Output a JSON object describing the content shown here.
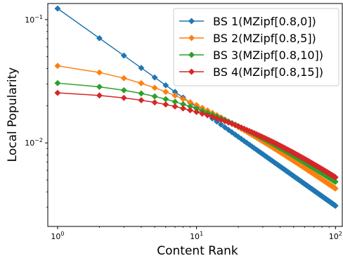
{
  "chart_data": {
    "type": "line",
    "x_scale": "log",
    "y_scale": "log",
    "xlabel": "Content Rank",
    "ylabel": "Local Popularity",
    "xlim": [
      0.85,
      112
    ],
    "ylim": [
      0.0021,
      0.135
    ],
    "x_ticks": [
      {
        "value": 1,
        "base": "10",
        "exp": "0"
      },
      {
        "value": 10,
        "base": "10",
        "exp": "1"
      },
      {
        "value": 100,
        "base": "10",
        "exp": "2"
      }
    ],
    "y_ticks": [
      {
        "value": 0.01,
        "base": "10",
        "exp": "−2"
      },
      {
        "value": 0.1,
        "base": "10",
        "exp": "−1"
      }
    ],
    "legend_position": "top-right",
    "x_range": [
      1,
      100
    ],
    "series": [
      {
        "name": "BS 1(MZipf[0.8,0])",
        "color": "#1f77b4",
        "shift": 0,
        "exponent": 0.8,
        "n_items": 100
      },
      {
        "name": "BS 2(MZipf[0.8,5])",
        "color": "#ff7f0e",
        "shift": 5,
        "exponent": 0.8,
        "n_items": 100
      },
      {
        "name": "BS 3(MZipf[0.8,10])",
        "color": "#2ca02c",
        "shift": 10,
        "exponent": 0.8,
        "n_items": 100
      },
      {
        "name": "BS 4(MZipf[0.8,15])",
        "color": "#d62728",
        "shift": 15,
        "exponent": 0.8,
        "n_items": 100
      }
    ]
  }
}
